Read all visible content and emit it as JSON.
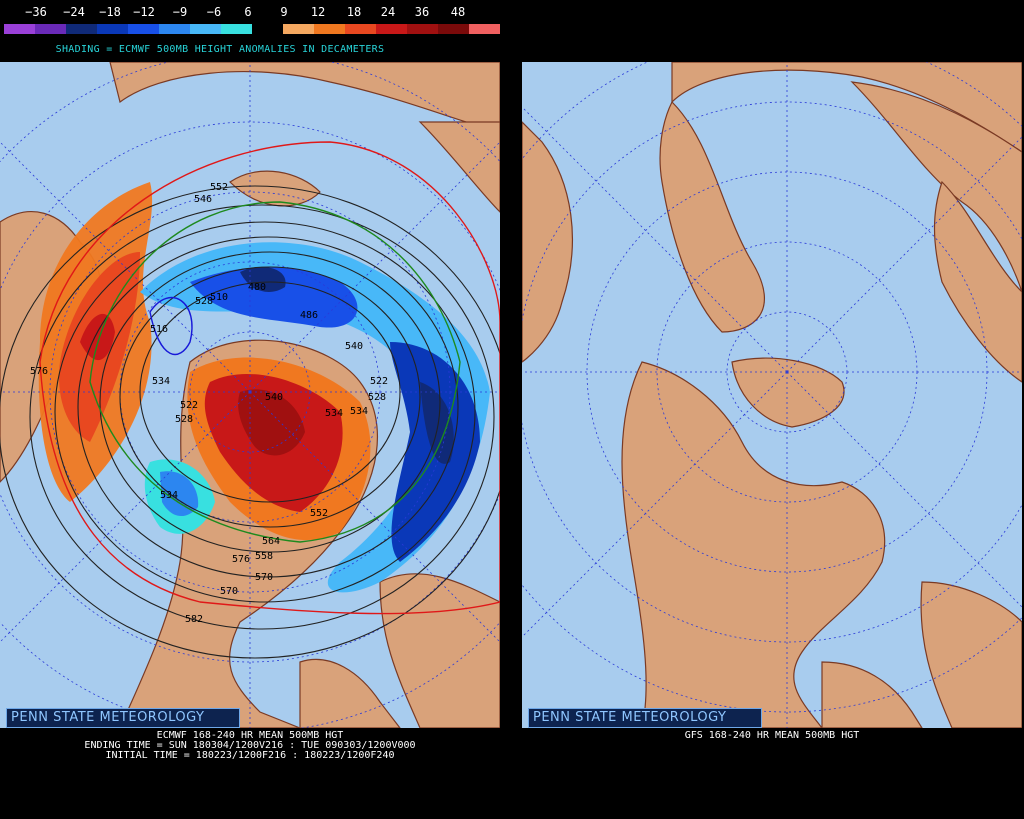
{
  "legend": {
    "labels": [
      "−36",
      "−24",
      "−18",
      "−12",
      "−9",
      "−6",
      "6",
      "9",
      "12",
      "18",
      "24",
      "36",
      "48"
    ],
    "colors": [
      "#9a40d8",
      "#6a2ab8",
      "#102a78",
      "#0a38b8",
      "#1850e8",
      "#2c86f0",
      "#48b8f8",
      "#38e0e0",
      "#000000",
      "#f5a860",
      "#f07820",
      "#e84820",
      "#c81818",
      "#a01010",
      "#7a0a0a",
      "#f06060"
    ]
  },
  "left": {
    "subtitle": "SHADING = ECMWF 500MB HEIGHT ANOMALIES IN DECAMETERS",
    "credit": "PENN STATE METEOROLOGY",
    "caption_lines": [
      "ECMWF 168-240 HR MEAN 500MB HGT",
      "ENDING TIME = SUN 180304/1200V216 : TUE 090303/1200V000",
      "INITIAL TIME = 180223/1200F216 : 180223/1200F240"
    ],
    "contour_labels": [
      "546",
      "552",
      "510",
      "480",
      "486",
      "528",
      "516",
      "522",
      "528",
      "534",
      "540",
      "534",
      "522",
      "528",
      "576",
      "570",
      "582",
      "570",
      "576",
      "558",
      "564",
      "534",
      "552",
      "540",
      "534"
    ]
  },
  "right": {
    "credit": "PENN STATE METEOROLOGY",
    "caption": "GFS 168-240 HR MEAN 500MB HGT"
  },
  "colors": {
    "ocean": "#a8ccee",
    "land": "#d9a27a",
    "coast": "#7a3a24",
    "grid": "#2a3ad8"
  }
}
